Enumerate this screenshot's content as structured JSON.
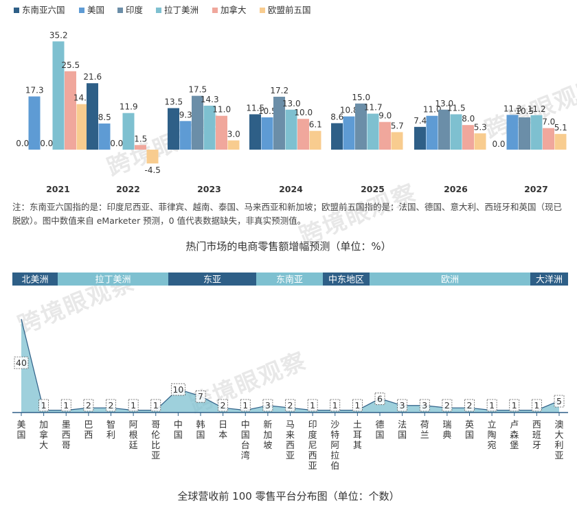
{
  "chart_data": [
    {
      "type": "bar",
      "title": "热门市场的电商零售额增幅预测（单位：%）",
      "categories": [
        "2021",
        "2022",
        "2023",
        "2024",
        "2025",
        "2026",
        "2027"
      ],
      "series": [
        {
          "name": "东南亚六国",
          "color": "#2e5f87",
          "values": [
            0.0,
            21.6,
            13.5,
            11.5,
            8.6,
            7.4,
            0.0
          ]
        },
        {
          "name": "美国",
          "color": "#5e9bd4",
          "values": [
            17.3,
            8.5,
            9.3,
            10.5,
            10.8,
            11.0,
            11.3
          ]
        },
        {
          "name": "印度",
          "color": "#6b8ea8",
          "values": [
            0.0,
            0.0,
            17.5,
            17.2,
            15.0,
            13.0,
            10.5
          ]
        },
        {
          "name": "拉丁美洲",
          "color": "#7ec0d0",
          "values": [
            35.2,
            11.9,
            14.3,
            13.0,
            11.7,
            11.5,
            11.2
          ]
        },
        {
          "name": "加拿大",
          "color": "#f0a79c",
          "values": [
            25.5,
            1.5,
            11.0,
            10.0,
            9.0,
            8.0,
            7.0
          ]
        },
        {
          "name": "欧盟前五国",
          "color": "#f8cc8f",
          "values": [
            14.8,
            -4.5,
            3.0,
            6.1,
            5.7,
            5.3,
            5.1
          ]
        }
      ],
      "value_labels": [
        [
          "0.0",
          "21.6",
          "13.5",
          "11.5",
          "8.6",
          "7.4",
          ""
        ],
        [
          "17.3",
          "8.5",
          "9.3",
          "10.5",
          "10.8",
          "11.0",
          "11.3"
        ],
        [
          "0.0",
          "0.0",
          "17.5",
          "17.2",
          "15.0",
          "13.0",
          "10.5"
        ],
        [
          "35.2",
          "11.9",
          "14.3",
          "13.0",
          "11.7",
          "11.5",
          "11.2"
        ],
        [
          "25.5",
          "1.5",
          "11.0",
          "10.0",
          "9.0",
          "8.0",
          "7.0"
        ],
        [
          "14.8",
          "-4.5",
          "3.0",
          "6.1",
          "5.7",
          "5.3",
          "5.1"
        ]
      ],
      "extra_label": "0.0",
      "legend_position": "top-left",
      "grid": false
    },
    {
      "type": "area",
      "title": "全球营收前 100 零售平台分布图（单位：个数）",
      "regions": [
        {
          "label": "北美洲",
          "color": "#2e5f87"
        },
        {
          "label": "拉丁美洲",
          "color": "#7ec0d0"
        },
        {
          "label": "东亚",
          "color": "#2e5f87"
        },
        {
          "label": "东南亚",
          "color": "#7ec0d0"
        },
        {
          "label": "中东地区",
          "color": "#2e5f87"
        },
        {
          "label": "欧洲",
          "color": "#7ec0d0"
        },
        {
          "label": "大洋洲",
          "color": "#2e5f87"
        }
      ],
      "categories": [
        "美国",
        "加拿大",
        "墨西哥",
        "巴西",
        "智利",
        "阿根廷",
        "哥伦比亚",
        "中国",
        "韩国",
        "日本",
        "中国台湾",
        "新加坡",
        "马来西亚",
        "印度尼西亚",
        "沙特阿拉伯",
        "土耳其",
        "德国",
        "法国",
        "荷兰",
        "瑞典",
        "英国",
        "立陶宛",
        "卢森堡",
        "西班牙",
        "澳大利亚"
      ],
      "values": [
        40,
        1,
        1,
        2,
        2,
        1,
        1,
        10,
        7,
        2,
        1,
        3,
        2,
        1,
        1,
        1,
        6,
        3,
        3,
        2,
        2,
        1,
        1,
        1,
        5
      ],
      "ylim": [
        0,
        42
      ]
    }
  ],
  "note": "注：东南亚六国指的是：印度尼西亚、菲律宾、越南、泰国、马来西亚和新加坡；欧盟前五国指的是：法国、德国、意大利、西班牙和英国（现已脱欧）。图中数值来自 eMarketer 预测，0 值代表数据缺失，非真实预测值。",
  "watermark": "跨境眼观察"
}
